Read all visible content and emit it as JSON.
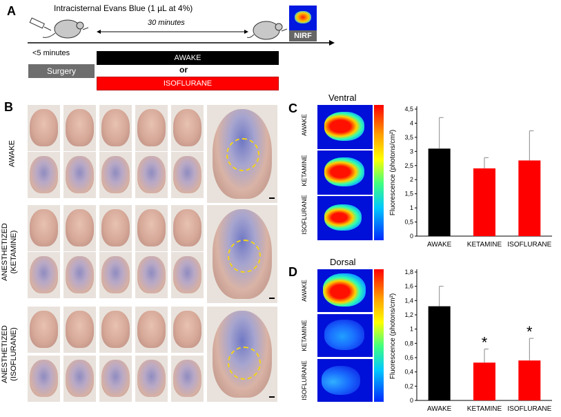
{
  "panel_a": {
    "letter": "A",
    "title": "Intracisternal Evans Blue (1 µL at 4%)",
    "interval": "30 minutes",
    "nirf_label": "NIRF",
    "pre_time": "<5 minutes",
    "surgery": "Surgery",
    "awake": "AWAKE",
    "or": "or",
    "isoflurane": "ISOFLURANE"
  },
  "panel_b": {
    "letter": "B",
    "rows": [
      "AWAKE",
      "ANESTHETIZED (KETAMINE)",
      "ANESTHETIZED (ISOFLURANE)"
    ],
    "row_label_lines": [
      [
        "AWAKE"
      ],
      [
        "ANESTHETIZED",
        "(KETAMINE)"
      ],
      [
        "ANESTHETIZED",
        "(ISOFLURANE)"
      ]
    ]
  },
  "panel_c": {
    "letter": "C",
    "view": "Ventral",
    "image_labels": [
      "AWAKE",
      "KETAMINE",
      "ISOFLURANE"
    ]
  },
  "panel_d": {
    "letter": "D",
    "view": "Dorsal",
    "image_labels": [
      "AWAKE",
      "KETAMINE",
      "ISOFLURANE"
    ]
  },
  "chart_data": [
    {
      "type": "bar",
      "title": "Ventral",
      "categories": [
        "AWAKE",
        "KETAMINE",
        "ISOFLURANE"
      ],
      "values": [
        3.1,
        2.4,
        2.68
      ],
      "errors": [
        1.1,
        0.38,
        1.05
      ],
      "ylabel": "Fluorescence (photons/cm²)",
      "ylim": [
        0,
        4.5
      ],
      "yticks": [
        "0",
        "0,5",
        "1",
        "1,5",
        "2",
        "2,5",
        "3",
        "3,5",
        "4",
        "4,5"
      ],
      "colors": [
        "#000000",
        "#ff0000",
        "#ff0000"
      ],
      "significance": [
        "",
        "",
        ""
      ]
    },
    {
      "type": "bar",
      "title": "Dorsal",
      "categories": [
        "AWAKE",
        "KETAMINE",
        "ISOFLURANE"
      ],
      "values": [
        1.32,
        0.53,
        0.56
      ],
      "errors": [
        0.28,
        0.19,
        0.31
      ],
      "ylabel": "Fluorescence (photons/cm²)",
      "ylim": [
        0,
        1.8
      ],
      "yticks": [
        "0",
        "0,2",
        "0,4",
        "0,6",
        "0,8",
        "1",
        "1,2",
        "1,4",
        "1,6",
        "1,8"
      ],
      "colors": [
        "#000000",
        "#ff0000",
        "#ff0000"
      ],
      "significance": [
        "",
        "*",
        "*"
      ]
    }
  ]
}
